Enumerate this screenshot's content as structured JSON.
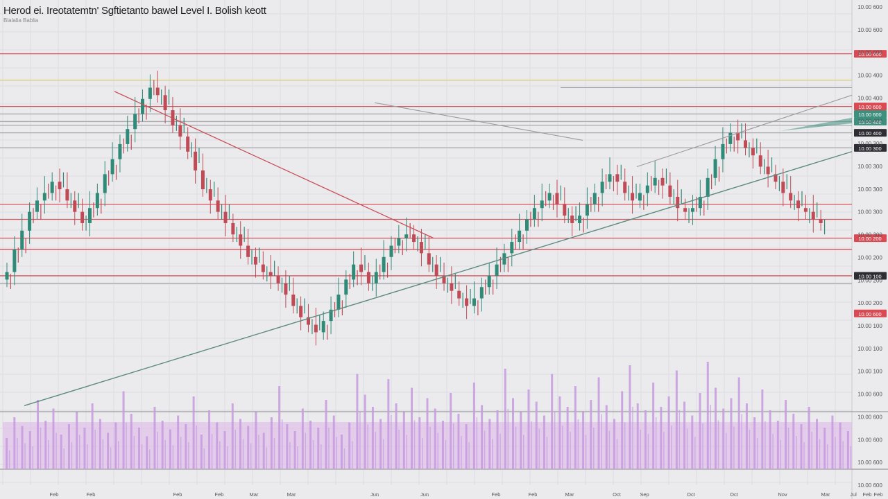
{
  "header": {
    "title": "Herod ei. Ireotatemtn' Sgftietanto bawel Level I. Bolish keott",
    "subtitle": "Blalalia Bablia"
  },
  "colors": {
    "background": "#ebebed",
    "candle_up": "#2f8a78",
    "candle_down": "#c04a55",
    "level_red": "#d4545a",
    "level_gray": "#a9a9ad",
    "level_yellow": "#d8c878",
    "trend_red": "#c8505a",
    "trend_green": "#5c8a80",
    "trend_gray": "#9a9aa0",
    "volume": "#c79be0",
    "volume_band": "#dcb4ea",
    "tag_red": "#d94a52",
    "tag_dark": "#2d2d33",
    "tag_green": "#3d8f7e",
    "axis_text": "#55555c"
  },
  "chart_data": {
    "type": "candlestick",
    "title": "Herod ei. Ireotatemtn' Sgftietanto bawel Level I. Bolish keott",
    "grid": true,
    "ylim": [
      0,
      100
    ],
    "x_ticks": [
      "Feb",
      "Feb",
      "Feb",
      "Feb",
      "Mar",
      "Mar",
      "Jun",
      "Jun",
      "Feb",
      "Feb",
      "Mar",
      "Oct",
      "Sep",
      "Oct",
      "Oct",
      "Nov",
      "Mar",
      "Jul",
      "Feb",
      "Feb"
    ],
    "y_ticks": [
      "10.00 600",
      "10.00 600",
      "10.00 600",
      "10.00 400",
      "10.00 400",
      "10.00 400",
      "10.00 300",
      "10.00 300",
      "10.00 300",
      "10.00 300",
      "10.00 300",
      "10.00 200",
      "10.00 200",
      "10.00 200",
      "10.00 100",
      "10.00 100",
      "10.00 100",
      "10.00 600",
      "10.00 600",
      "10.00 600",
      "10.00 600",
      "10.00 600"
    ],
    "close": [
      36,
      42,
      47,
      52,
      55,
      57,
      60,
      58,
      55,
      52,
      49,
      53,
      57,
      62,
      66,
      70,
      74,
      78,
      82,
      85,
      83,
      79,
      75,
      72,
      68,
      63,
      58,
      55,
      52,
      49,
      46,
      43,
      40,
      38,
      36,
      35,
      33,
      30,
      27,
      24,
      22,
      20,
      23,
      26,
      30,
      34,
      38,
      36,
      33,
      36,
      40,
      43,
      45,
      46,
      44,
      41,
      38,
      35,
      33,
      31,
      29,
      27,
      29,
      32,
      35,
      38,
      41,
      44,
      47,
      50,
      53,
      55,
      57,
      54,
      51,
      49,
      51,
      54,
      57,
      60,
      62,
      60,
      57,
      55,
      57,
      59,
      61,
      59,
      56,
      53,
      52,
      53,
      56,
      61,
      66,
      70,
      73,
      71,
      69,
      67,
      64,
      62,
      60,
      57,
      55,
      53,
      52,
      50,
      49
    ],
    "support_levels": [
      94,
      87,
      80,
      78,
      76,
      75,
      73,
      69,
      54,
      50,
      45,
      42,
      35,
      33
    ],
    "volume": [
      18,
      30,
      25,
      22,
      40,
      28,
      35,
      20,
      26,
      33,
      24,
      38,
      29,
      21,
      27,
      45,
      32,
      24,
      19,
      36,
      28,
      23,
      31,
      26,
      42,
      20,
      34,
      27,
      22,
      38,
      29,
      25,
      33,
      21,
      30,
      48,
      26,
      22,
      35,
      28,
      24,
      40,
      31,
      20,
      27,
      55,
      43,
      36,
      29,
      52,
      38,
      33,
      47,
      30,
      41,
      35,
      28,
      44,
      32,
      26,
      50,
      37,
      29,
      34,
      58,
      41,
      33,
      46,
      39,
      31,
      55,
      42,
      36,
      48,
      33,
      40,
      53,
      37,
      29,
      45,
      60,
      38,
      34,
      50,
      36,
      42,
      57,
      39,
      31,
      44,
      62,
      47,
      35,
      41,
      53,
      38,
      30,
      46,
      34,
      28,
      40,
      32,
      26,
      36,
      29,
      24,
      31,
      27,
      22
    ],
    "price_tags": [
      {
        "label": "10.00 600",
        "value": 94,
        "color": "red"
      },
      {
        "label": "10.00 600",
        "value": 80,
        "color": "red"
      },
      {
        "label": "10.00 600",
        "value": 78,
        "color": "green"
      },
      {
        "label": "10.00 400",
        "value": 76,
        "color": "green"
      },
      {
        "label": "10.00 400",
        "value": 73,
        "color": "dark"
      },
      {
        "label": "10.00 300",
        "value": 69,
        "color": "dark"
      },
      {
        "label": "10.00 200",
        "value": 45,
        "color": "red"
      },
      {
        "label": "10.00 100",
        "value": 35,
        "color": "dark"
      },
      {
        "label": "10.00 600",
        "value": 25,
        "color": "red"
      }
    ]
  }
}
